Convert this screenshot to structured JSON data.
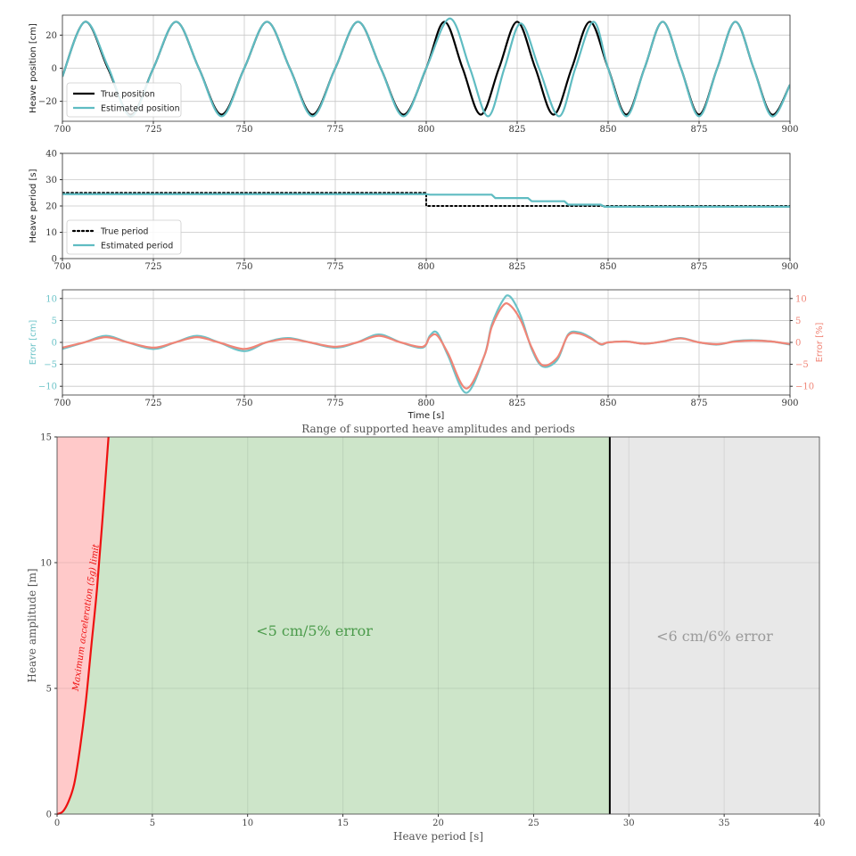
{
  "colors": {
    "true_line": "#000000",
    "estimated_line": "#5fbcc2",
    "error_cm": "#6cc3c8",
    "error_pct": "#f08577",
    "grid": "#c8c8c8",
    "red_fill": "#ffc9c9",
    "green_fill": "#cde5c9",
    "grey_fill": "#e8e8e8",
    "limit_line": "#ee1111",
    "boundary_line": "#000000",
    "green_text": "#4a9a4a",
    "grey_text": "#9a9a9a"
  },
  "chart_data": [
    {
      "type": "line",
      "xlim": [
        700,
        900
      ],
      "ylim": [
        -32,
        32
      ],
      "xticks": [
        700,
        725,
        750,
        775,
        800,
        825,
        850,
        875,
        900
      ],
      "yticks": [
        -20,
        0,
        20
      ],
      "ylabel": "Heave position [cm]",
      "xlabel": "",
      "grid": true,
      "legend_position": "lower-left",
      "series": [
        {
          "name": "True position",
          "style": "solid",
          "x": [
            700,
            706.25,
            712.5,
            718.75,
            725,
            731.25,
            737.5,
            743.75,
            750,
            756.25,
            762.5,
            768.75,
            775,
            781.25,
            787.5,
            793.75,
            800,
            805,
            810,
            815,
            820,
            825,
            830,
            835,
            840,
            845,
            850,
            855,
            860,
            865,
            870,
            875,
            880,
            885,
            890,
            895,
            900
          ],
          "y": [
            -5,
            28,
            0,
            -28,
            0,
            28,
            0,
            -28,
            0,
            28,
            0,
            -28,
            0,
            28,
            0,
            -28,
            0,
            28,
            0,
            -28,
            0,
            28,
            0,
            -28,
            0,
            28,
            0,
            -28,
            0,
            28,
            0,
            -28,
            0,
            28,
            0,
            -28,
            -10
          ]
        },
        {
          "name": "Estimated position",
          "style": "solid",
          "x": [
            700,
            706.25,
            712.5,
            718.75,
            725,
            731.25,
            737.5,
            743.75,
            750,
            756.25,
            762.5,
            768.75,
            775,
            781.25,
            787.5,
            793.75,
            800,
            806.5,
            812,
            817,
            821.5,
            826,
            831,
            836.5,
            841,
            846,
            850,
            855,
            860,
            865,
            870,
            875,
            880,
            885,
            890,
            895,
            900
          ],
          "y": [
            -5,
            28,
            1,
            -29,
            0,
            28,
            0,
            -29,
            0,
            28,
            0,
            -29,
            0,
            28,
            0,
            -29,
            0,
            30,
            0,
            -29,
            0,
            27,
            0,
            -29,
            0,
            28,
            0,
            -29,
            0,
            28,
            0,
            -29,
            0,
            28,
            0,
            -29,
            -10
          ]
        }
      ]
    },
    {
      "type": "line",
      "xlim": [
        700,
        900
      ],
      "ylim": [
        0,
        40
      ],
      "xticks": [
        700,
        725,
        750,
        775,
        800,
        825,
        850,
        875,
        900
      ],
      "yticks": [
        0,
        10,
        20,
        30,
        40
      ],
      "ylabel": "Heave period [s]",
      "xlabel": "",
      "grid": true,
      "legend_position": "lower-left",
      "series": [
        {
          "name": "True period",
          "style": "dotted",
          "x": [
            700,
            800,
            800,
            900
          ],
          "y": [
            25,
            25,
            20,
            20
          ]
        },
        {
          "name": "Estimated period",
          "style": "solid",
          "x": [
            700,
            800,
            801,
            818,
            819,
            828,
            829,
            838,
            839,
            848,
            849,
            900
          ],
          "y": [
            24.5,
            24.5,
            24.3,
            24.3,
            23,
            23,
            21.8,
            21.8,
            20.5,
            20.5,
            19.7,
            19.7
          ]
        }
      ]
    },
    {
      "type": "line",
      "xlim": [
        700,
        900
      ],
      "ylim": [
        -12,
        12
      ],
      "y2lim": [
        -12,
        12
      ],
      "xticks": [
        700,
        725,
        750,
        775,
        800,
        825,
        850,
        875,
        900
      ],
      "yticks": [
        -10,
        -5,
        0,
        5,
        10
      ],
      "y2ticks": [
        -10,
        -5,
        0,
        5,
        10
      ],
      "ylabel": "Error [cm]",
      "y2label": "Error [%]",
      "xlabel": "Time [s]",
      "grid": true,
      "series": [
        {
          "name": "Error [cm]",
          "axis": "left",
          "x": [
            700,
            706,
            712,
            718,
            725,
            731,
            737,
            743,
            750,
            756,
            762,
            768,
            775,
            781,
            787,
            793,
            799,
            801,
            803,
            806,
            811,
            816,
            818,
            821,
            823,
            826,
            829,
            832,
            836,
            839,
            842,
            845,
            848,
            850,
            855,
            860,
            865,
            870,
            875,
            880,
            885,
            890,
            895,
            900
          ],
          "y": [
            -1.5,
            0,
            1.5,
            0,
            -1.5,
            0,
            1.5,
            0,
            -2,
            0,
            1,
            0,
            -1.2,
            0,
            1.8,
            0,
            -1.2,
            1.5,
            2.2,
            -3,
            -11.5,
            -3,
            4,
            9.5,
            10.5,
            6,
            -1.5,
            -5.5,
            -4,
            1.8,
            2.3,
            1.2,
            -0.5,
            0,
            0.2,
            -0.3,
            0.2,
            1,
            0,
            -0.5,
            0.3,
            0.5,
            0.2,
            -0.5
          ]
        },
        {
          "name": "Error [%]",
          "axis": "right",
          "x": [
            700,
            706,
            712,
            718,
            725,
            731,
            737,
            743,
            750,
            756,
            762,
            768,
            775,
            781,
            787,
            793,
            799,
            801,
            803,
            806,
            811,
            816,
            818,
            821,
            823,
            826,
            829,
            832,
            836,
            839,
            842,
            845,
            848,
            850,
            855,
            860,
            865,
            870,
            875,
            880,
            885,
            890,
            895,
            900
          ],
          "y": [
            -1.2,
            0,
            1.2,
            0,
            -1.2,
            0,
            1.2,
            0,
            -1.5,
            0,
            0.8,
            0,
            -1,
            0,
            1.5,
            0,
            -1,
            1.2,
            1.6,
            -2.5,
            -10.5,
            -3,
            3.5,
            8.3,
            8.5,
            5,
            -1.2,
            -5.2,
            -3.5,
            1.6,
            2,
            1,
            -0.4,
            0,
            0.2,
            -0.3,
            0.2,
            0.9,
            0,
            -0.4,
            0.2,
            0.4,
            0.2,
            -0.4
          ]
        }
      ]
    },
    {
      "type": "area",
      "title": "Range of supported heave amplitudes and periods",
      "xlabel": "Heave period [s]",
      "ylabel": "Heave amplitude [m]",
      "xlim": [
        0,
        40
      ],
      "ylim": [
        0,
        15
      ],
      "xticks": [
        0,
        5,
        10,
        15,
        20,
        25,
        30,
        35,
        40
      ],
      "yticks": [
        0,
        5,
        10,
        15
      ],
      "grid": true,
      "limit_curve": {
        "label": "Maximum acceleration (5g) limit",
        "x": [
          0,
          0.3,
          0.6,
          0.9,
          1.2,
          1.5,
          1.8,
          2.1,
          2.4,
          2.7
        ],
        "y": [
          0,
          0.1,
          0.5,
          1.2,
          2.6,
          4.4,
          6.7,
          9.0,
          11.9,
          15.0
        ]
      },
      "boundary_period": 29,
      "regions": [
        {
          "label": "<5 cm/5% error",
          "x_from": 0,
          "x_to": 29,
          "color": "green",
          "label_x": 13.5,
          "label_y": 7.3
        },
        {
          "label": "<6 cm/6% error",
          "x_from": 29,
          "x_to": 40,
          "color": "grey",
          "label_x": 34.5,
          "label_y": 7.1
        }
      ]
    }
  ]
}
